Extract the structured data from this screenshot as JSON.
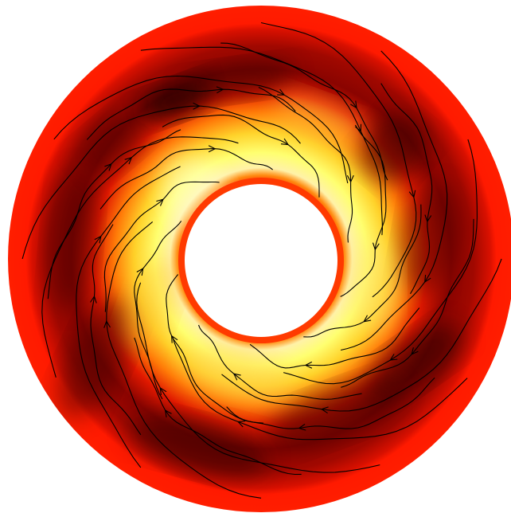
{
  "figure": {
    "kind": "annular-flow-field",
    "colormap": [
      "#ffffff",
      "#ffff66",
      "#ffcc22",
      "#ff6a00",
      "#e81400",
      "#7a0000",
      "#2a0000"
    ],
    "outer_ring_color": "#ff1a00",
    "streamline_color": "#000000",
    "rotation": "clockwise"
  }
}
